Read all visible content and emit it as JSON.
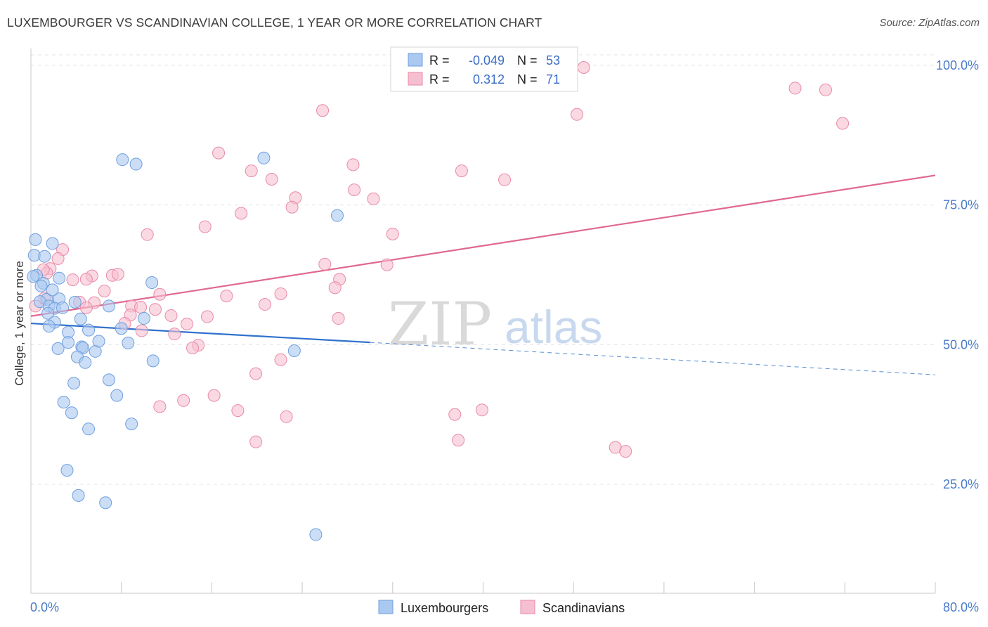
{
  "header": {
    "title": "LUXEMBOURGER VS SCANDINAVIAN COLLEGE, 1 YEAR OR MORE CORRELATION CHART",
    "source": "Source: ZipAtlas.com"
  },
  "watermark": {
    "zip": "ZIP",
    "atlas": "atlas"
  },
  "stats": [
    {
      "r_label": "R =",
      "r": "-0.049",
      "n_label": "N =",
      "n": "53"
    },
    {
      "r_label": "R =",
      "r": "0.312",
      "n_label": "N =",
      "n": "71"
    }
  ],
  "colors": {
    "lux_fill": "#aac8f0",
    "lux_stroke": "#6f9fde",
    "lux_line": "#2f72cc",
    "scan_fill": "#f6bfd0",
    "scan_stroke": "#e88aa8",
    "scan_line": "#e06890",
    "grid": "#e3e3e3",
    "axis_text": "#4a7ac8"
  },
  "chart_data": {
    "type": "scatter",
    "title": "LUXEMBOURGER VS SCANDINAVIAN COLLEGE, 1 YEAR OR MORE CORRELATION CHART",
    "xlabel": "",
    "ylabel": "College, 1 year or more",
    "xlim": [
      0,
      80
    ],
    "ylim": [
      5.5,
      103
    ],
    "x_tick_labels": [
      "0.0%",
      "80.0%"
    ],
    "y_ticks": [
      25,
      50,
      75,
      100
    ],
    "y_tick_labels": [
      "25.0%",
      "50.0%",
      "75.0%",
      "100.0%"
    ],
    "grid": true,
    "legend_position": "bottom-center",
    "series": [
      {
        "name": "Luxembourgers",
        "r": -0.049,
        "n": 53,
        "trend": {
          "x0": 0,
          "y0": 53.8,
          "x1": 30,
          "y1": 50.4,
          "dash_to_x": 80,
          "dash_to_y": 44.6
        },
        "points": [
          [
            0.4,
            68.8
          ],
          [
            0.3,
            66.0
          ],
          [
            1.2,
            65.8
          ],
          [
            1.9,
            68.1
          ],
          [
            0.5,
            62.4
          ],
          [
            1.1,
            61.0
          ],
          [
            2.5,
            61.9
          ],
          [
            0.9,
            60.5
          ],
          [
            1.4,
            58.1
          ],
          [
            2.5,
            58.2
          ],
          [
            0.8,
            57.7
          ],
          [
            1.6,
            56.9
          ],
          [
            2.1,
            56.5
          ],
          [
            2.8,
            56.6
          ],
          [
            3.9,
            57.6
          ],
          [
            1.5,
            55.6
          ],
          [
            2.1,
            54.0
          ],
          [
            1.6,
            53.3
          ],
          [
            3.3,
            52.2
          ],
          [
            5.1,
            52.6
          ],
          [
            3.3,
            50.4
          ],
          [
            4.5,
            49.6
          ],
          [
            4.6,
            49.4
          ],
          [
            2.4,
            49.3
          ],
          [
            5.7,
            48.8
          ],
          [
            6.0,
            50.6
          ],
          [
            4.1,
            47.8
          ],
          [
            4.8,
            46.8
          ],
          [
            6.9,
            56.9
          ],
          [
            4.4,
            54.6
          ],
          [
            8.6,
            50.3
          ],
          [
            8.0,
            52.9
          ],
          [
            10.0,
            54.7
          ],
          [
            10.7,
            61.1
          ],
          [
            10.8,
            47.1
          ],
          [
            3.8,
            43.1
          ],
          [
            6.9,
            43.7
          ],
          [
            7.6,
            40.9
          ],
          [
            2.9,
            39.7
          ],
          [
            3.6,
            37.8
          ],
          [
            8.9,
            35.8
          ],
          [
            5.1,
            34.9
          ],
          [
            3.2,
            27.5
          ],
          [
            4.2,
            23.0
          ],
          [
            6.6,
            21.7
          ],
          [
            8.1,
            83.1
          ],
          [
            9.3,
            82.3
          ],
          [
            20.6,
            83.4
          ],
          [
            27.1,
            73.1
          ],
          [
            23.3,
            48.9
          ],
          [
            25.2,
            16.0
          ],
          [
            0.2,
            62.2
          ],
          [
            1.9,
            59.8
          ]
        ]
      },
      {
        "name": "Scandinavians",
        "r": 0.312,
        "n": 71,
        "trend": {
          "x0": 0,
          "y0": 55.1,
          "x1": 80,
          "y1": 80.3
        },
        "points": [
          [
            48.9,
            99.6
          ],
          [
            34.8,
            97.0
          ],
          [
            25.8,
            91.9
          ],
          [
            48.3,
            91.2
          ],
          [
            67.6,
            95.9
          ],
          [
            70.3,
            95.6
          ],
          [
            71.8,
            89.6
          ],
          [
            16.6,
            84.3
          ],
          [
            28.5,
            82.2
          ],
          [
            19.5,
            81.1
          ],
          [
            21.3,
            79.6
          ],
          [
            38.1,
            81.1
          ],
          [
            41.9,
            79.5
          ],
          [
            28.6,
            77.7
          ],
          [
            23.4,
            76.3
          ],
          [
            30.3,
            76.1
          ],
          [
            23.1,
            74.6
          ],
          [
            18.6,
            73.5
          ],
          [
            15.4,
            71.1
          ],
          [
            32.0,
            69.8
          ],
          [
            10.3,
            69.7
          ],
          [
            2.8,
            67.0
          ],
          [
            2.4,
            65.4
          ],
          [
            1.7,
            63.6
          ],
          [
            1.4,
            62.8
          ],
          [
            5.4,
            62.3
          ],
          [
            7.2,
            62.4
          ],
          [
            7.7,
            62.6
          ],
          [
            4.9,
            61.7
          ],
          [
            3.7,
            61.6
          ],
          [
            26.0,
            64.4
          ],
          [
            31.5,
            64.3
          ],
          [
            27.3,
            61.7
          ],
          [
            26.9,
            60.2
          ],
          [
            6.5,
            59.6
          ],
          [
            11.4,
            59.0
          ],
          [
            17.3,
            58.7
          ],
          [
            22.1,
            59.1
          ],
          [
            1.2,
            58.3
          ],
          [
            4.3,
            57.6
          ],
          [
            5.6,
            57.5
          ],
          [
            8.9,
            56.9
          ],
          [
            9.7,
            56.7
          ],
          [
            11.0,
            56.3
          ],
          [
            20.7,
            57.2
          ],
          [
            4.9,
            56.6
          ],
          [
            8.8,
            55.3
          ],
          [
            12.4,
            55.2
          ],
          [
            15.6,
            55.0
          ],
          [
            27.2,
            54.7
          ],
          [
            8.3,
            53.8
          ],
          [
            13.8,
            53.7
          ],
          [
            9.8,
            52.5
          ],
          [
            12.7,
            51.9
          ],
          [
            14.8,
            49.9
          ],
          [
            14.3,
            49.4
          ],
          [
            22.1,
            47.3
          ],
          [
            19.9,
            44.8
          ],
          [
            16.2,
            40.9
          ],
          [
            13.5,
            40.0
          ],
          [
            11.4,
            38.9
          ],
          [
            18.3,
            38.2
          ],
          [
            22.6,
            37.1
          ],
          [
            39.9,
            38.3
          ],
          [
            37.5,
            37.5
          ],
          [
            37.8,
            32.9
          ],
          [
            19.9,
            32.6
          ],
          [
            51.7,
            31.6
          ],
          [
            52.6,
            30.9
          ],
          [
            1.1,
            63.4
          ],
          [
            0.4,
            56.9
          ]
        ]
      }
    ]
  },
  "legend": {
    "items": [
      "Luxembourgers",
      "Scandinavians"
    ]
  }
}
